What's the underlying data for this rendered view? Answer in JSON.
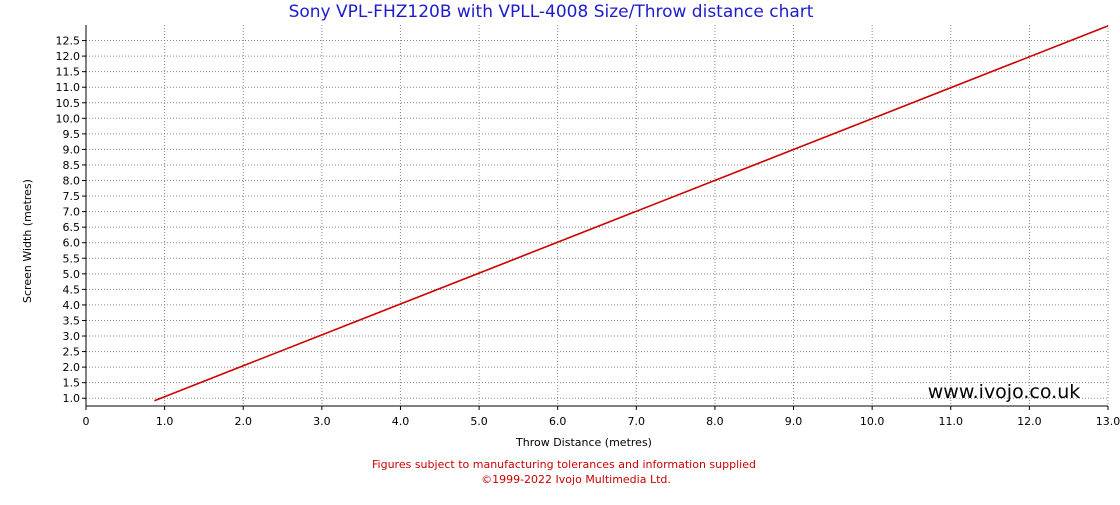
{
  "chart_data": {
    "type": "line",
    "title": "Sony VPL-FHZ120B with VPLL-4008 Size/Throw distance chart",
    "xlabel": "Throw Distance (metres)",
    "ylabel": "Screen Width (metres)",
    "xlim": [
      0,
      13.0
    ],
    "ylim": [
      0.75,
      13.0
    ],
    "x_ticks": [
      "0",
      "1.0",
      "2.0",
      "3.0",
      "4.0",
      "5.0",
      "6.0",
      "7.0",
      "8.0",
      "9.0",
      "10.0",
      "11.0",
      "12.0",
      "13.0"
    ],
    "x_tick_values": [
      0,
      1,
      2,
      3,
      4,
      5,
      6,
      7,
      8,
      9,
      10,
      11,
      12,
      13
    ],
    "y_ticks": [
      "1.0",
      "1.5",
      "2.0",
      "2.5",
      "3.0",
      "3.5",
      "4.0",
      "4.5",
      "5.0",
      "5.5",
      "6.0",
      "6.5",
      "7.0",
      "7.5",
      "8.0",
      "8.5",
      "9.0",
      "9.5",
      "10.0",
      "10.5",
      "11.0",
      "11.5",
      "12.0",
      "12.5"
    ],
    "y_tick_values": [
      1.0,
      1.5,
      2.0,
      2.5,
      3.0,
      3.5,
      4.0,
      4.5,
      5.0,
      5.5,
      6.0,
      6.5,
      7.0,
      7.5,
      8.0,
      8.5,
      9.0,
      9.5,
      10.0,
      10.5,
      11.0,
      11.5,
      12.0,
      12.5
    ],
    "grid": true,
    "series": [
      {
        "color": "#cc0000",
        "x": [
          0.87,
          13.0
        ],
        "y": [
          0.92,
          12.97
        ]
      }
    ]
  },
  "watermark": "www.ivojo.co.uk",
  "footer": {
    "line1": "Figures subject to manufacturing tolerances and information supplied",
    "line2": "©1999-2022 Ivojo Multimedia Ltd."
  },
  "colors": {
    "title": "#1c1ccd",
    "footer": "#cc0000",
    "line": "#cc0000",
    "grid": "#888888"
  }
}
